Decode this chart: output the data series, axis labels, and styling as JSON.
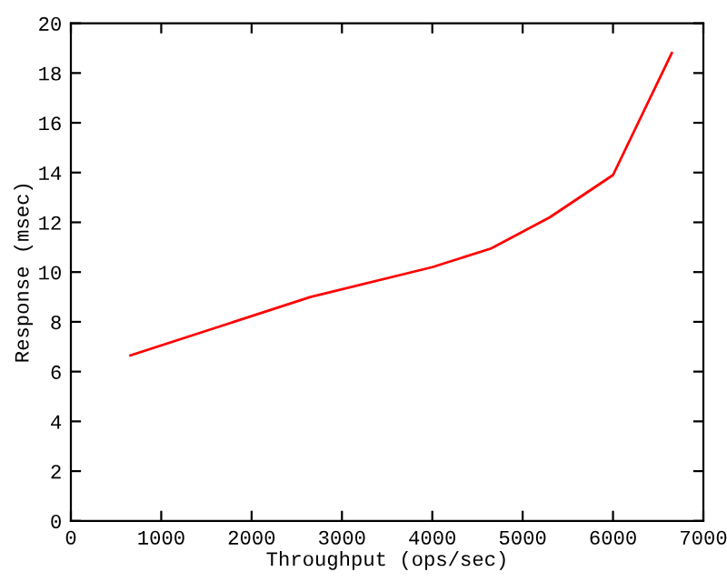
{
  "chart_data": {
    "type": "line",
    "xlabel": "Throughput (ops/sec)",
    "ylabel": "Response (msec)",
    "x": [
      660,
      2650,
      4000,
      4650,
      5300,
      6000,
      6650
    ],
    "series": [
      {
        "color": "#ff0000",
        "values": [
          6.65,
          9.0,
          10.2,
          10.95,
          12.2,
          13.9,
          18.8
        ]
      }
    ],
    "xlim": [
      0,
      7000
    ],
    "xticks": [
      0,
      1000,
      2000,
      3000,
      4000,
      5000,
      6000,
      7000
    ],
    "ylim": [
      0,
      20
    ],
    "yticks": [
      0,
      2,
      4,
      6,
      8,
      10,
      12,
      14,
      16,
      18,
      20
    ],
    "grid": false,
    "legend": false,
    "marker": "none",
    "line_style": "solid"
  }
}
